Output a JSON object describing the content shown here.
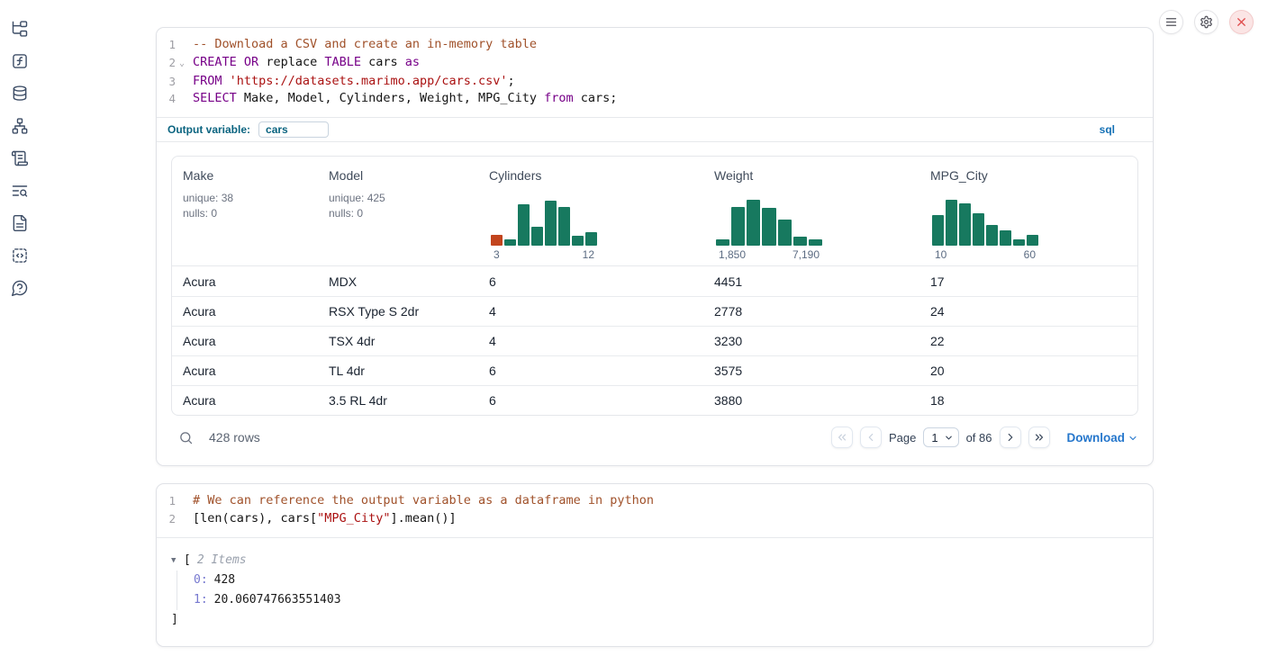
{
  "sidebar": {
    "icons": [
      "folder-tree",
      "function-square",
      "database",
      "dependency-graph",
      "scroll-script",
      "logs-search",
      "document",
      "snippets",
      "help-bubble"
    ]
  },
  "window_controls": {
    "icons": [
      "menu",
      "settings",
      "shutdown"
    ]
  },
  "sql_cell": {
    "lines": [
      {
        "n": "1",
        "fold": false,
        "segments": [
          {
            "t": "cmt",
            "s": "-- Download a CSV and create an in-memory table"
          }
        ]
      },
      {
        "n": "2",
        "fold": true,
        "segments": [
          {
            "t": "kw",
            "s": "CREATE"
          },
          {
            "t": "txt",
            "s": " "
          },
          {
            "t": "kw",
            "s": "OR"
          },
          {
            "t": "txt",
            "s": " replace "
          },
          {
            "t": "kw",
            "s": "TABLE"
          },
          {
            "t": "txt",
            "s": " cars "
          },
          {
            "t": "kw",
            "s": "as"
          }
        ]
      },
      {
        "n": "3",
        "fold": false,
        "segments": [
          {
            "t": "kw",
            "s": "FROM"
          },
          {
            "t": "txt",
            "s": " "
          },
          {
            "t": "str",
            "s": "'https://datasets.marimo.app/cars.csv'"
          },
          {
            "t": "txt",
            "s": ";"
          }
        ]
      },
      {
        "n": "4",
        "fold": false,
        "segments": [
          {
            "t": "kw",
            "s": "SELECT"
          },
          {
            "t": "txt",
            "s": " Make, Model, Cylinders, Weight, MPG_City "
          },
          {
            "t": "kw",
            "s": "from"
          },
          {
            "t": "txt",
            "s": " cars;"
          }
        ]
      }
    ],
    "output_variable_label": "Output variable:",
    "output_variable_value": "cars",
    "language_badge": "sql"
  },
  "table": {
    "columns": [
      {
        "name": "Make",
        "stats": [
          "unique: 38",
          "nulls: 0"
        ]
      },
      {
        "name": "Model",
        "stats": [
          "unique: 425",
          "nulls: 0"
        ]
      },
      {
        "name": "Cylinders",
        "histogram": {
          "heights": [
            0.23,
            0.13,
            0.88,
            0.4,
            0.97,
            0.83,
            0.22,
            0.28
          ],
          "orange": [
            0
          ],
          "labels": [
            "3",
            "12"
          ]
        }
      },
      {
        "name": "Weight",
        "histogram": {
          "heights": [
            0.13,
            0.82,
            0.98,
            0.8,
            0.55,
            0.19,
            0.13
          ],
          "orange": [],
          "labels": [
            "1,850",
            "7,190"
          ]
        }
      },
      {
        "name": "MPG_City",
        "histogram": {
          "heights": [
            0.66,
            0.98,
            0.9,
            0.7,
            0.45,
            0.32,
            0.14,
            0.24
          ],
          "orange": [],
          "labels": [
            "10",
            "60"
          ]
        }
      }
    ],
    "rows": [
      [
        "Acura",
        "MDX",
        "6",
        "4451",
        "17"
      ],
      [
        "Acura",
        "RSX Type S 2dr",
        "4",
        "2778",
        "24"
      ],
      [
        "Acura",
        "TSX 4dr",
        "4",
        "3230",
        "22"
      ],
      [
        "Acura",
        "TL 4dr",
        "6",
        "3575",
        "20"
      ],
      [
        "Acura",
        "3.5 RL 4dr",
        "6",
        "3880",
        "18"
      ]
    ],
    "footer": {
      "rows_count": "428 rows",
      "page_label": "Page",
      "page_value": "1",
      "of_label": "of 86",
      "download_label": "Download"
    }
  },
  "python_cell": {
    "lines": [
      {
        "n": "1",
        "fold": false,
        "segments": [
          {
            "t": "cmt",
            "s": "# We can reference the output variable as a dataframe in python"
          }
        ]
      },
      {
        "n": "2",
        "fold": false,
        "segments": [
          {
            "t": "txt",
            "s": "[len(cars), cars["
          },
          {
            "t": "str",
            "s": "\"MPG_City\""
          },
          {
            "t": "txt",
            "s": "].mean()]"
          }
        ]
      }
    ],
    "output": {
      "bracket_open": "[",
      "items_label": "2 Items",
      "entries": [
        {
          "key": "0:",
          "value": "428"
        },
        {
          "key": "1:",
          "value": "20.060747663551403"
        }
      ],
      "bracket_close": "]"
    }
  },
  "colors": {
    "histogram_green": "#17795f",
    "histogram_orange": "#c2441d",
    "keyword": "#770088",
    "string": "#aa1111",
    "comment": "#a0512a",
    "download_blue": "#2677cc",
    "close_button_red": "#df4a4a"
  }
}
